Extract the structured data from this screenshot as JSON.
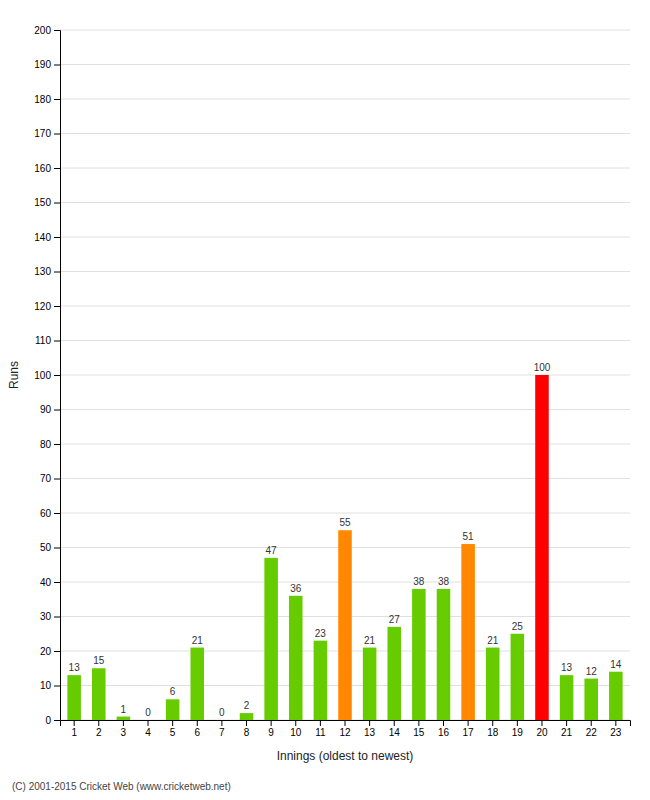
{
  "chart_data": {
    "type": "bar",
    "xlabel": "Innings (oldest to newest)",
    "ylabel": "Runs",
    "annotations": [
      "(C) 2001-2015 Cricket Web (www.cricketweb.net)"
    ],
    "categories": [
      1,
      2,
      3,
      4,
      5,
      6,
      7,
      8,
      9,
      10,
      11,
      12,
      13,
      14,
      15,
      16,
      17,
      18,
      19,
      20,
      21,
      22,
      23
    ],
    "values": [
      13,
      15,
      1,
      0,
      6,
      21,
      0,
      2,
      47,
      36,
      23,
      55,
      21,
      27,
      38,
      38,
      51,
      21,
      25,
      100,
      13,
      12,
      14
    ],
    "colors": [
      "#66cc00",
      "#66cc00",
      "#66cc00",
      "#66cc00",
      "#66cc00",
      "#66cc00",
      "#66cc00",
      "#66cc00",
      "#66cc00",
      "#66cc00",
      "#66cc00",
      "#ff8800",
      "#66cc00",
      "#66cc00",
      "#66cc00",
      "#66cc00",
      "#ff8800",
      "#66cc00",
      "#66cc00",
      "#ff0000",
      "#66cc00",
      "#66cc00",
      "#66cc00"
    ],
    "ylim": [
      0,
      200
    ],
    "yticks": [
      0,
      10,
      20,
      30,
      40,
      50,
      60,
      70,
      80,
      90,
      100,
      110,
      120,
      130,
      140,
      150,
      160,
      170,
      180,
      190,
      200
    ],
    "grid": true,
    "data_labels": true
  }
}
